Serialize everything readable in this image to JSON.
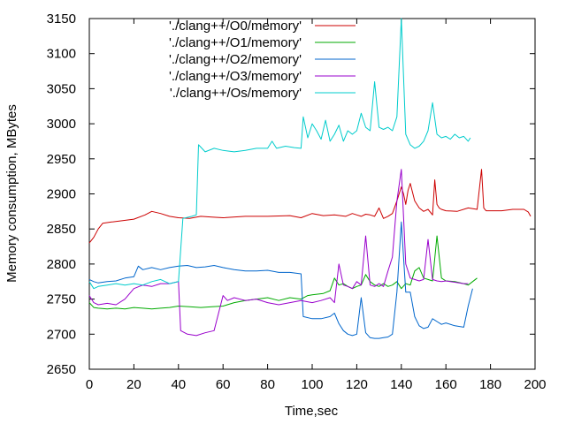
{
  "chart_data": {
    "type": "line",
    "title": "",
    "xlabel": "Time,sec",
    "ylabel": "Memory consumption, MBytes",
    "xlim": [
      0,
      200
    ],
    "ylim": [
      2650,
      3150
    ],
    "xticks": [
      0,
      20,
      40,
      60,
      80,
      100,
      120,
      140,
      160,
      180,
      200
    ],
    "yticks": [
      2650,
      2700,
      2750,
      2800,
      2850,
      2900,
      2950,
      3000,
      3050,
      3100,
      3150
    ],
    "legend_position": "top-left",
    "series": [
      {
        "name": "'./clang++/O0/memory'",
        "color": "#cc0000",
        "x": [
          0,
          2,
          4,
          6,
          10,
          15,
          20,
          25,
          28,
          32,
          36,
          40,
          45,
          50,
          55,
          60,
          70,
          80,
          90,
          95,
          100,
          105,
          110,
          115,
          118,
          120,
          122,
          124,
          126,
          128,
          130,
          132,
          134,
          136,
          138,
          140,
          141,
          142,
          143,
          144,
          146,
          148,
          150,
          152,
          154,
          155,
          156,
          157,
          158,
          160,
          165,
          170,
          174,
          176,
          177,
          178,
          180,
          185,
          190,
          195,
          197,
          198
        ],
        "values": [
          2830,
          2838,
          2850,
          2858,
          2860,
          2862,
          2864,
          2870,
          2875,
          2872,
          2868,
          2866,
          2865,
          2868,
          2867,
          2866,
          2868,
          2868,
          2869,
          2866,
          2872,
          2869,
          2870,
          2868,
          2872,
          2870,
          2868,
          2871,
          2870,
          2868,
          2880,
          2865,
          2868,
          2872,
          2890,
          2910,
          2900,
          2885,
          2905,
          2915,
          2890,
          2880,
          2875,
          2878,
          2870,
          2920,
          2885,
          2880,
          2878,
          2876,
          2875,
          2880,
          2878,
          2935,
          2880,
          2876,
          2876,
          2876,
          2878,
          2878,
          2874,
          2868
        ]
      },
      {
        "name": "'./clang++/O1/memory'",
        "color": "#00aa00",
        "x": [
          0,
          2,
          4,
          8,
          12,
          16,
          20,
          24,
          28,
          32,
          36,
          40,
          45,
          50,
          55,
          60,
          65,
          70,
          75,
          80,
          85,
          90,
          95,
          98,
          100,
          105,
          108,
          110,
          112,
          114,
          116,
          118,
          120,
          122,
          124,
          126,
          128,
          130,
          132,
          134,
          136,
          138,
          140,
          142,
          144,
          146,
          148,
          150,
          152,
          154,
          156,
          158,
          160,
          164,
          168,
          170,
          172,
          174
        ],
        "values": [
          2745,
          2738,
          2737,
          2736,
          2737,
          2736,
          2738,
          2737,
          2736,
          2737,
          2738,
          2740,
          2739,
          2738,
          2739,
          2740,
          2745,
          2748,
          2750,
          2752,
          2748,
          2752,
          2750,
          2755,
          2756,
          2758,
          2762,
          2780,
          2770,
          2772,
          2768,
          2765,
          2768,
          2770,
          2785,
          2775,
          2770,
          2768,
          2772,
          2768,
          2770,
          2775,
          2765,
          2772,
          2770,
          2790,
          2795,
          2780,
          2778,
          2776,
          2840,
          2780,
          2776,
          2775,
          2772,
          2770,
          2775,
          2780
        ]
      },
      {
        "name": "'./clang++/O2/memory'",
        "color": "#0066cc",
        "x": [
          0,
          2,
          4,
          8,
          12,
          16,
          20,
          22,
          24,
          28,
          32,
          36,
          40,
          44,
          48,
          52,
          56,
          60,
          65,
          70,
          75,
          80,
          85,
          90,
          95,
          96,
          100,
          104,
          108,
          110,
          112,
          114,
          116,
          118,
          120,
          122,
          124,
          126,
          128,
          130,
          132,
          134,
          136,
          138,
          140,
          142,
          144,
          146,
          148,
          150,
          152,
          154,
          156,
          158,
          160,
          164,
          168,
          170,
          172
        ],
        "values": [
          2778,
          2775,
          2773,
          2775,
          2776,
          2780,
          2782,
          2797,
          2792,
          2795,
          2792,
          2795,
          2797,
          2798,
          2795,
          2796,
          2798,
          2795,
          2792,
          2790,
          2790,
          2791,
          2788,
          2788,
          2786,
          2725,
          2722,
          2722,
          2725,
          2730,
          2715,
          2705,
          2700,
          2698,
          2700,
          2752,
          2702,
          2695,
          2694,
          2694,
          2695,
          2696,
          2700,
          2760,
          2860,
          2760,
          2760,
          2725,
          2712,
          2708,
          2710,
          2722,
          2718,
          2714,
          2716,
          2712,
          2710,
          2740,
          2765
        ]
      },
      {
        "name": "'./clang++/O3/memory'",
        "color": "#9900cc",
        "x": [
          0,
          2,
          4,
          8,
          12,
          16,
          20,
          24,
          28,
          32,
          36,
          40,
          41,
          44,
          48,
          52,
          56,
          60,
          62,
          65,
          70,
          75,
          80,
          85,
          90,
          95,
          100,
          104,
          108,
          110,
          112,
          114,
          116,
          118,
          120,
          122,
          124,
          126,
          128,
          130,
          132,
          134,
          136,
          138,
          140,
          142,
          144,
          146,
          148,
          150,
          152,
          154,
          156,
          158,
          160,
          164,
          168,
          170
        ],
        "values": [
          2755,
          2745,
          2742,
          2744,
          2742,
          2750,
          2765,
          2770,
          2768,
          2772,
          2772,
          2775,
          2705,
          2700,
          2698,
          2702,
          2705,
          2755,
          2748,
          2752,
          2748,
          2750,
          2745,
          2742,
          2745,
          2748,
          2745,
          2748,
          2752,
          2745,
          2800,
          2770,
          2768,
          2765,
          2775,
          2770,
          2840,
          2770,
          2768,
          2772,
          2768,
          2790,
          2810,
          2890,
          2935,
          2800,
          2780,
          2778,
          2776,
          2778,
          2835,
          2778,
          2776,
          2775,
          2776,
          2774,
          2772,
          2772
        ]
      },
      {
        "name": "'./clang++/Os/memory'",
        "color": "#00cccc",
        "x": [
          0,
          2,
          4,
          8,
          12,
          16,
          20,
          24,
          28,
          32,
          36,
          40,
          42,
          46,
          48,
          49,
          52,
          56,
          60,
          65,
          70,
          75,
          80,
          82,
          84,
          88,
          92,
          95,
          96,
          98,
          100,
          102,
          104,
          106,
          108,
          110,
          112,
          114,
          116,
          118,
          120,
          122,
          124,
          126,
          128,
          130,
          132,
          134,
          136,
          138,
          140,
          142,
          144,
          146,
          148,
          150,
          152,
          154,
          156,
          158,
          160,
          162,
          164,
          166,
          168,
          170,
          171
        ],
        "values": [
          2775,
          2765,
          2768,
          2770,
          2772,
          2770,
          2772,
          2770,
          2775,
          2778,
          2772,
          2775,
          2865,
          2868,
          2870,
          2970,
          2960,
          2965,
          2962,
          2960,
          2962,
          2965,
          2965,
          2975,
          2965,
          2968,
          2966,
          2965,
          3010,
          2980,
          3000,
          2990,
          2978,
          3005,
          2975,
          2985,
          2998,
          2975,
          2990,
          2985,
          2990,
          3015,
          2995,
          2990,
          3060,
          2995,
          2992,
          2995,
          2990,
          3010,
          3150,
          2985,
          2970,
          2965,
          2968,
          2975,
          2990,
          3030,
          2985,
          2980,
          2982,
          2978,
          2985,
          2980,
          2982,
          2975,
          2980
        ]
      }
    ]
  }
}
